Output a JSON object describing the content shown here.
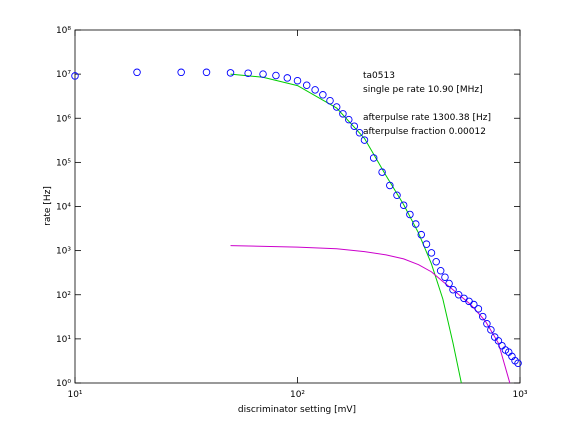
{
  "chart_data": {
    "type": "scatter",
    "xlabel": "discriminator setting [mV]",
    "ylabel": "rate [Hz]",
    "xlog": true,
    "ylog": true,
    "xlim": [
      10,
      1000
    ],
    "ylim": [
      1,
      100000000
    ],
    "xticks": [
      {
        "value": 10,
        "label": "10¹"
      },
      {
        "value": 100,
        "label": "10²"
      },
      {
        "value": 1000,
        "label": "10³"
      }
    ],
    "yticks": [
      {
        "value": 1,
        "label": "10⁰"
      },
      {
        "value": 10,
        "label": "10¹"
      },
      {
        "value": 100,
        "label": "10²"
      },
      {
        "value": 1000,
        "label": "10³"
      },
      {
        "value": 10000,
        "label": "10⁴"
      },
      {
        "value": 100000,
        "label": "10⁵"
      },
      {
        "value": 1000000,
        "label": "10⁶"
      },
      {
        "value": 10000000,
        "label": "10⁷"
      },
      {
        "value": 100000000,
        "label": "10⁸"
      }
    ],
    "annotations": [
      "ta0513",
      "single pe rate 10.90 [MHz]",
      "afterpulse rate 1300.38 [Hz]",
      "afterpulse fraction 0.00012"
    ],
    "series": [
      {
        "type": "scatter",
        "color": "#0000ff",
        "x": [
          10,
          19,
          30,
          39,
          50,
          60,
          70,
          80,
          90,
          100,
          110,
          120,
          130,
          140,
          150,
          160,
          170,
          180,
          190,
          200,
          220,
          240,
          260,
          280,
          300,
          320,
          340,
          360,
          380,
          400,
          420,
          440,
          460,
          480,
          500,
          530,
          560,
          590,
          620,
          650,
          680,
          710,
          740,
          770,
          800,
          830,
          860,
          890,
          920,
          950,
          980
        ],
        "values": [
          9100000,
          11000000,
          11000000,
          11000000,
          10700000,
          10500000,
          10000000,
          9300000,
          8200000,
          7100000,
          5600000,
          4400000,
          3400000,
          2500000,
          1800000,
          1260000,
          930000,
          660000,
          470000,
          320000,
          126000,
          60000,
          30000,
          18000,
          10700,
          6600,
          4000,
          2300,
          1400,
          890,
          560,
          350,
          250,
          180,
          130,
          100,
          83,
          71,
          60,
          48,
          32,
          22,
          16,
          11,
          9,
          7,
          5.6,
          5,
          4,
          3.2,
          2.8
        ]
      },
      {
        "type": "line",
        "color": "#00cc00",
        "x": [
          50,
          70,
          100,
          150,
          200,
          250,
          300,
          350,
          400,
          450,
          500,
          545
        ],
        "values": [
          10000000,
          8500000,
          5500000,
          1700000,
          350000,
          50000,
          11000,
          2500,
          500,
          80,
          8,
          1
        ]
      },
      {
        "type": "line",
        "color": "#cc00cc",
        "x": [
          50,
          100,
          150,
          200,
          250,
          300,
          350,
          400,
          450,
          500,
          600,
          700,
          800,
          900
        ],
        "values": [
          1300,
          1200,
          1100,
          950,
          800,
          650,
          480,
          330,
          200,
          130,
          60,
          25,
          8,
          1
        ]
      }
    ]
  }
}
